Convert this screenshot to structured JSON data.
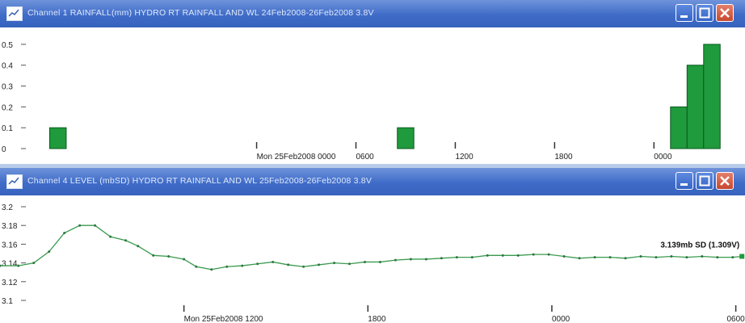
{
  "colors": {
    "titlebar": "#4a74cc",
    "bar_fill": "#1f9a3c",
    "line": "#3a9a50",
    "background": "#ffffff"
  },
  "window1": {
    "title": "Channel 1 RAINFALL(mm)  HYDRO RT RAINFALL AND WL 24Feb2008-26Feb2008 3.8V",
    "icon": "chart-icon",
    "buttons": [
      "minimize-icon",
      "maximize-icon",
      "close-icon"
    ]
  },
  "window2": {
    "title": "Channel 4 LEVEL (mbSD)  HYDRO RT RAINFALL AND WL 25Feb2008-26Feb2008 3.8V",
    "icon": "chart-icon",
    "buttons": [
      "minimize-icon",
      "maximize-icon",
      "close-icon"
    ],
    "readout": "3.139mb SD (1.309V)"
  },
  "chart_data": [
    {
      "type": "bar",
      "title": "",
      "ylabel": "",
      "ylim": [
        0,
        0.55
      ],
      "y_ticks": [
        "0",
        "0.1",
        "0.2",
        "0.3",
        "0.4",
        "0.5"
      ],
      "x_ticks": [
        "Mon 25Feb2008 0000",
        "0600",
        "1200",
        "1800",
        "0000"
      ],
      "x_hours": [
        0,
        6,
        12,
        18,
        24
      ],
      "xlim_hours": [
        -15.5,
        29.5
      ],
      "bars": [
        {
          "start_hour": -12.5,
          "end_hour": -11.5,
          "value": 0.1
        },
        {
          "start_hour": 8.5,
          "end_hour": 9.5,
          "value": 0.1
        },
        {
          "start_hour": 25.0,
          "end_hour": 26.0,
          "value": 0.2
        },
        {
          "start_hour": 26.0,
          "end_hour": 27.0,
          "value": 0.4
        },
        {
          "start_hour": 27.0,
          "end_hour": 28.0,
          "value": 0.5
        }
      ]
    },
    {
      "type": "line",
      "title": "",
      "ylabel": "",
      "ylim": [
        3.1,
        3.2
      ],
      "y_ticks": [
        "3.1",
        "3.12",
        "3.14",
        "3.16",
        "3.18",
        "3.2"
      ],
      "x_ticks": [
        "Mon 25Feb2008 1200",
        "1800",
        "0000",
        "0600"
      ],
      "x_hours": [
        12,
        18,
        24,
        30
      ],
      "xlim_hours": [
        6.0,
        30.3
      ],
      "series": [
        {
          "x_hours": [
            6.0,
            6.6,
            7.1,
            7.6,
            8.1,
            8.6,
            9.1,
            9.6,
            10.1,
            10.5,
            11.0,
            11.5,
            12.0,
            12.4,
            12.9,
            13.4,
            13.9,
            14.4,
            14.9,
            15.4,
            15.9,
            16.4,
            16.9,
            17.4,
            17.9,
            18.4,
            18.9,
            19.4,
            19.9,
            20.4,
            20.9,
            21.4,
            21.9,
            22.4,
            22.9,
            23.4,
            23.9,
            24.4,
            24.9,
            25.4,
            25.9,
            26.4,
            26.9,
            27.4,
            27.9,
            28.4,
            28.9,
            29.4,
            29.9,
            30.2
          ],
          "values": [
            3.137,
            3.137,
            3.14,
            3.152,
            3.172,
            3.18,
            3.18,
            3.168,
            3.164,
            3.158,
            3.148,
            3.147,
            3.144,
            3.136,
            3.133,
            3.136,
            3.137,
            3.139,
            3.141,
            3.138,
            3.136,
            3.138,
            3.14,
            3.139,
            3.141,
            3.141,
            3.143,
            3.144,
            3.144,
            3.145,
            3.146,
            3.146,
            3.148,
            3.148,
            3.148,
            3.149,
            3.149,
            3.147,
            3.145,
            3.146,
            3.146,
            3.145,
            3.147,
            3.146,
            3.147,
            3.146,
            3.147,
            3.146,
            3.146,
            3.147
          ]
        }
      ]
    }
  ]
}
